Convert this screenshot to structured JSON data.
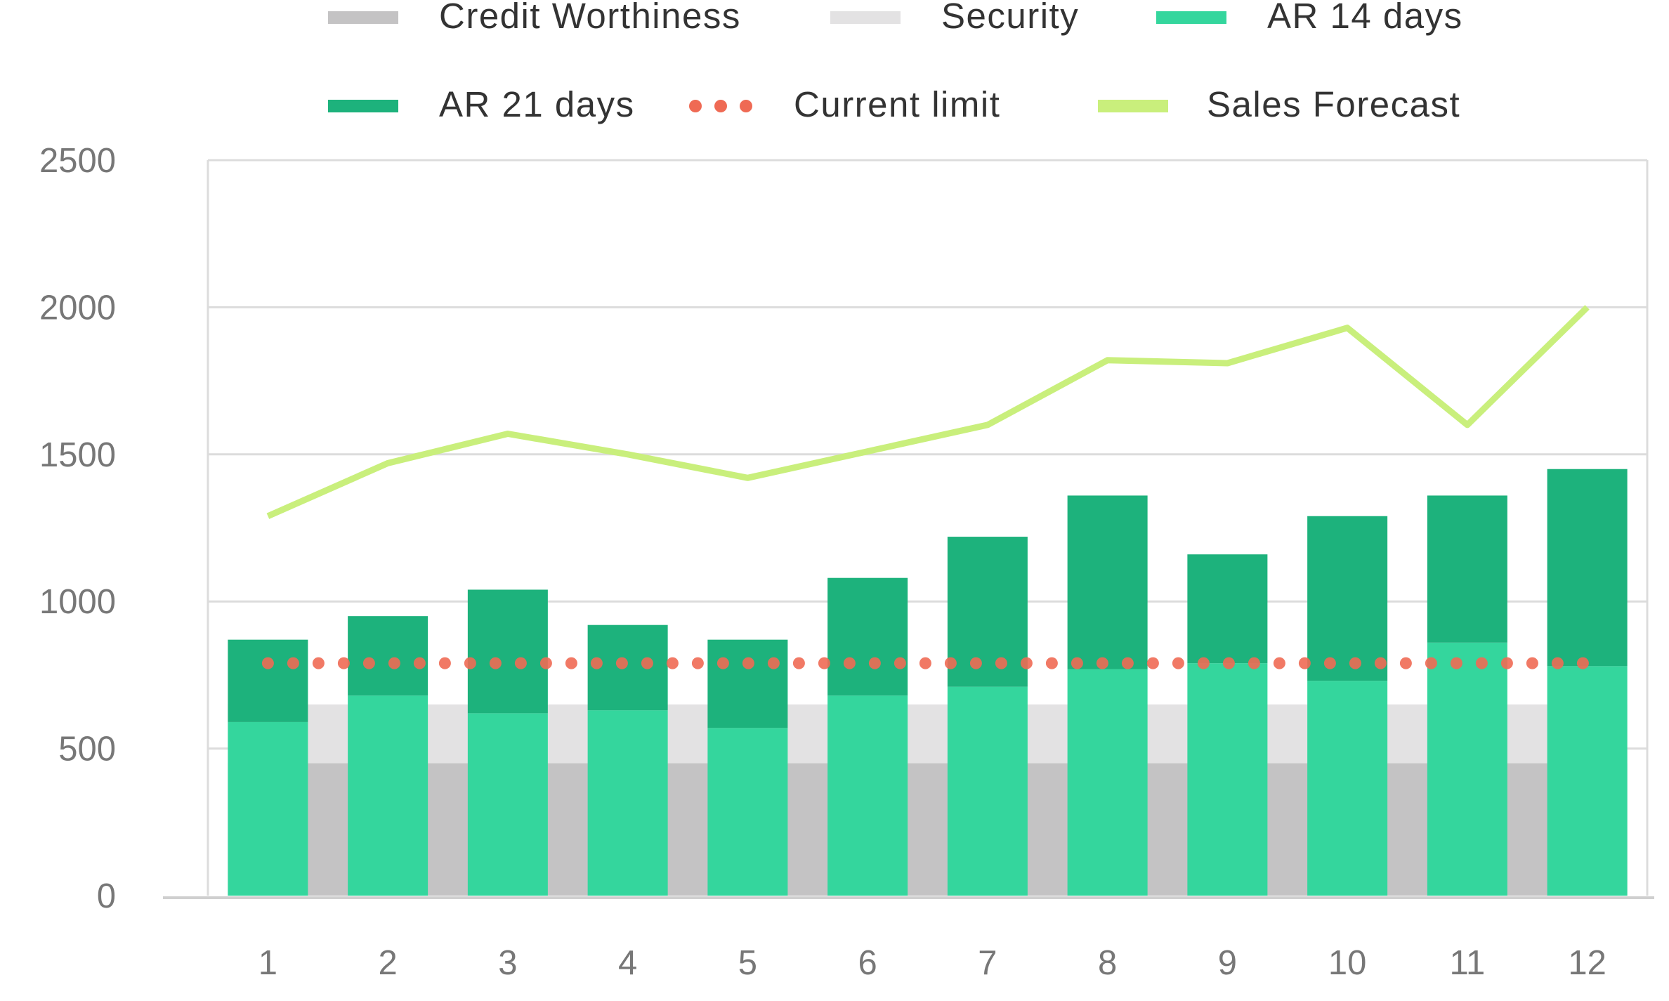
{
  "chart_data": {
    "type": "bar",
    "title": "",
    "xlabel": "",
    "ylabel": "",
    "categories": [
      "1",
      "2",
      "3",
      "4",
      "5",
      "6",
      "7",
      "8",
      "9",
      "10",
      "11",
      "12"
    ],
    "ylim": [
      0,
      2500
    ],
    "yticks": [
      0,
      500,
      1000,
      1500,
      2000,
      2500
    ],
    "grid": true,
    "legend_position": "top",
    "background_series": [
      {
        "name": "Credit Worthiness",
        "color": "#c4c3c4",
        "values": [
          450,
          450,
          450,
          450,
          450,
          450,
          450,
          450,
          450,
          450,
          450,
          450
        ]
      },
      {
        "name": "Security",
        "color": "#e3e2e3",
        "values": [
          200,
          200,
          200,
          200,
          200,
          200,
          200,
          200,
          200,
          200,
          200,
          200
        ]
      }
    ],
    "stacked_series": [
      {
        "name": "AR 14 days",
        "color": "#34d69d",
        "values": [
          590,
          680,
          620,
          630,
          570,
          680,
          710,
          770,
          790,
          730,
          860,
          780
        ]
      },
      {
        "name": "AR 21 days",
        "color": "#1db27c",
        "values": [
          280,
          270,
          420,
          290,
          300,
          400,
          510,
          590,
          370,
          560,
          500,
          670
        ]
      }
    ],
    "line_series": [
      {
        "name": "Current limit",
        "color": "#ef6a54",
        "style": "dotted",
        "values": [
          790,
          790,
          790,
          790,
          790,
          790,
          790,
          790,
          790,
          790,
          790,
          790
        ]
      },
      {
        "name": "Sales Forecast",
        "color": "#c9ef7c",
        "style": "solid",
        "values": [
          1290,
          1470,
          1570,
          1500,
          1420,
          1510,
          1600,
          1820,
          1810,
          1930,
          1600,
          2000
        ]
      }
    ],
    "legend": [
      {
        "label": "Credit Worthiness",
        "marker": "bar",
        "color": "#c4c3c4"
      },
      {
        "label": "Security",
        "marker": "bar",
        "color": "#e3e2e3"
      },
      {
        "label": "AR 14 days",
        "marker": "bar",
        "color": "#34d69d"
      },
      {
        "label": "AR 21 days",
        "marker": "bar",
        "color": "#1db27c"
      },
      {
        "label": "Current limit",
        "marker": "dots",
        "color": "#ef6a54"
      },
      {
        "label": "Sales Forecast",
        "marker": "line",
        "color": "#c9ef7c"
      }
    ]
  }
}
